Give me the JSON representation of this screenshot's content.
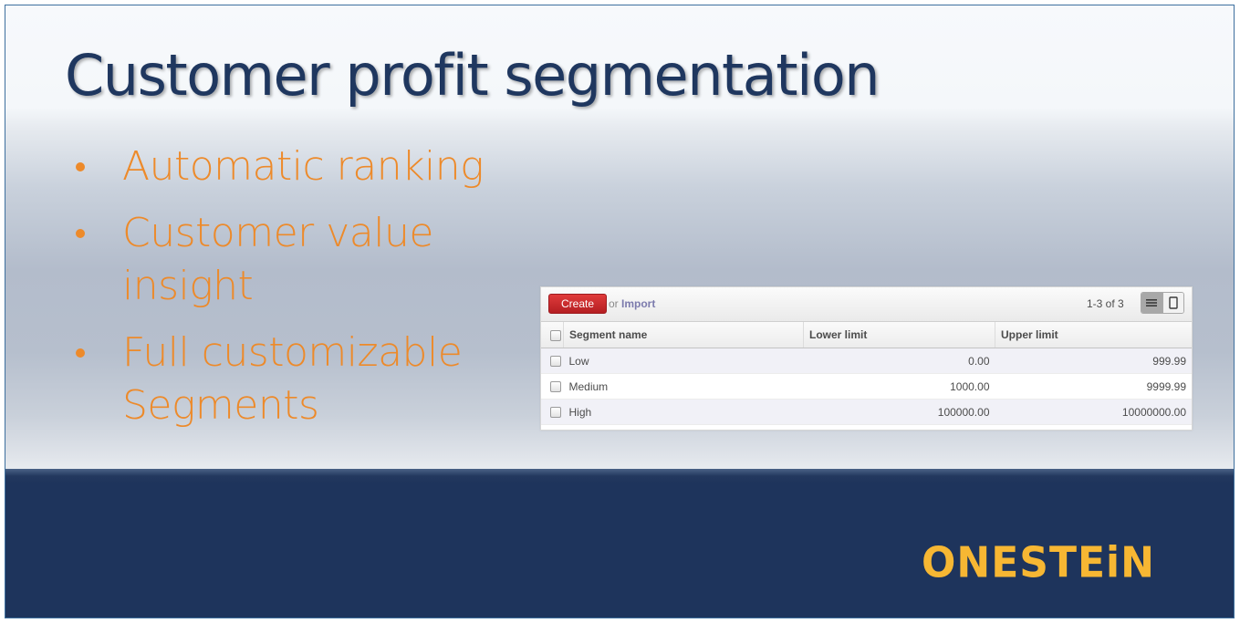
{
  "slide": {
    "title": "Customer profit segmentation",
    "bullets": [
      "Automatic ranking",
      "Customer value insight",
      "Full customizable Segments"
    ],
    "logo_text": "ONESTEiN",
    "colors": {
      "title": "#1f375f",
      "bullets": "#ed8a2a",
      "band": "#1e345c",
      "logo": "#f7b733",
      "create_button": "#c8272a"
    }
  },
  "listview": {
    "create_label": "Create",
    "or_text": "or",
    "import_label": "Import",
    "pager": "1-3 of 3",
    "view_icons": [
      "list-view-icon",
      "form-view-icon"
    ],
    "columns": [
      "Segment name",
      "Lower limit",
      "Upper limit"
    ],
    "rows": [
      {
        "name": "Low",
        "lower": "0.00",
        "upper": "999.99"
      },
      {
        "name": "Medium",
        "lower": "1000.00",
        "upper": "9999.99"
      },
      {
        "name": "High",
        "lower": "100000.00",
        "upper": "10000000.00"
      }
    ]
  }
}
